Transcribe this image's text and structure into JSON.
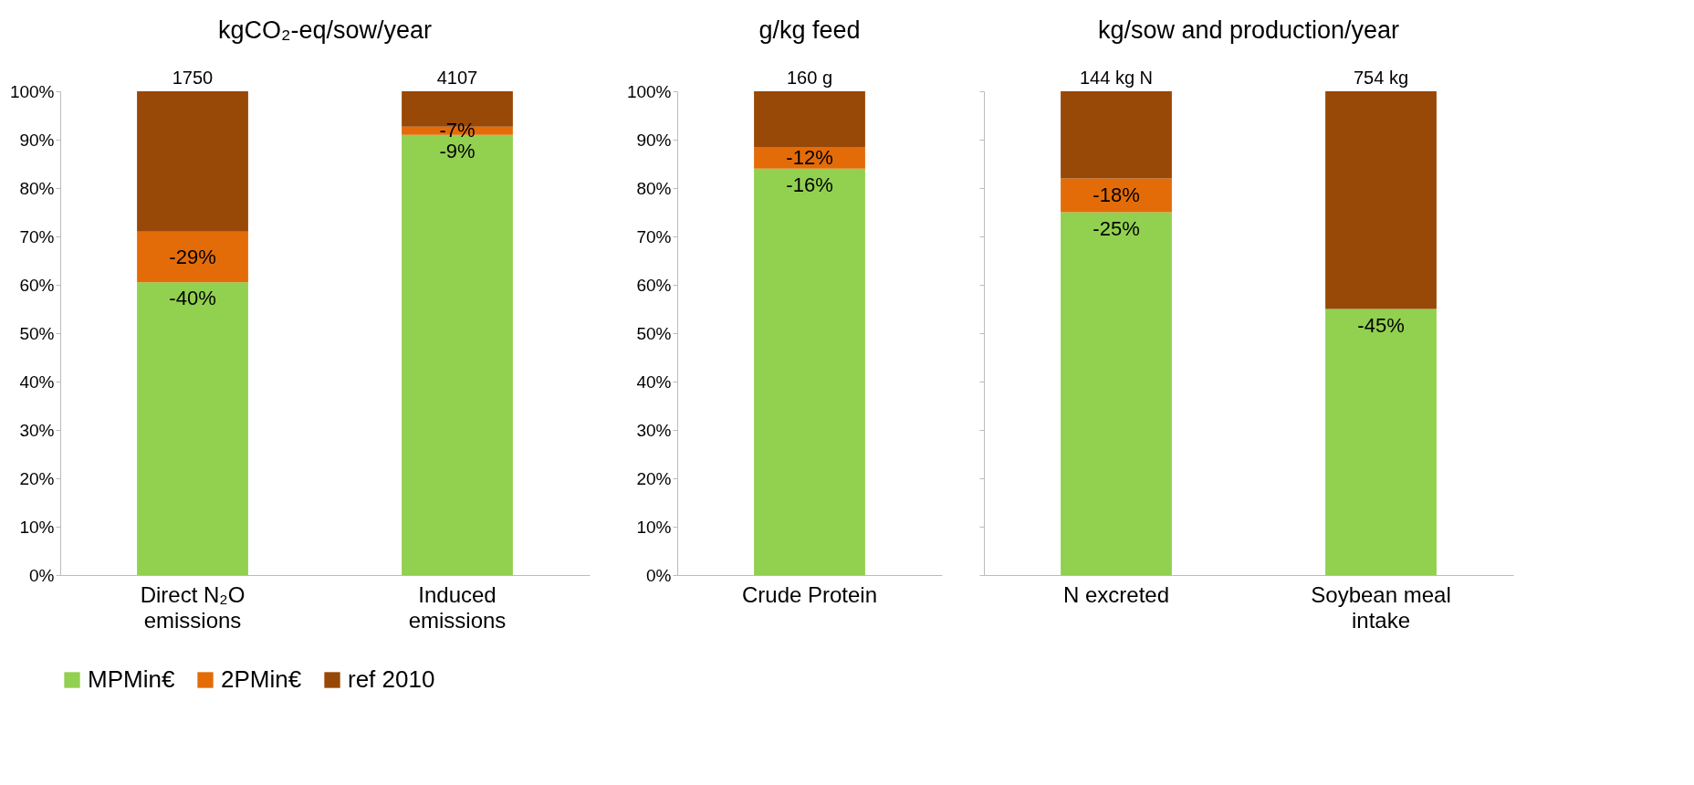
{
  "chart_data": [
    {
      "type": "bar",
      "title": "kgCO₂-eq/sow/year",
      "categories": [
        "Direct N₂O emissions",
        "Induced emissions"
      ],
      "stacked": true,
      "legend": "bottom",
      "ylim": [
        0,
        100
      ],
      "yticks": [
        {
          "value": 0,
          "label": "0%"
        },
        {
          "value": 10,
          "label": "10%"
        },
        {
          "value": 20,
          "label": "20%"
        },
        {
          "value": 30,
          "label": "30%"
        },
        {
          "value": 40,
          "label": "40%"
        },
        {
          "value": 50,
          "label": "50%"
        },
        {
          "value": 60,
          "label": "60%"
        },
        {
          "value": 70,
          "label": "70%"
        },
        {
          "value": 80,
          "label": "80%"
        },
        {
          "value": 90,
          "label": "90%"
        },
        {
          "value": 100,
          "label": "100%"
        }
      ],
      "series": [
        {
          "name": "MPMin€",
          "color": "#92d050",
          "values": [
            60.5,
            91
          ]
        },
        {
          "name": "2PMin€",
          "color": "#e36c09",
          "values": [
            10.5,
            1.7
          ]
        },
        {
          "name": "ref 2010",
          "color": "#984807",
          "values": [
            29,
            7.3
          ]
        }
      ],
      "annotations": [
        {
          "text": "1750",
          "x": "Direct N₂O emissions",
          "y": 100
        },
        {
          "text": "4107",
          "x": "Induced emissions",
          "y": 100
        },
        {
          "text": "-40%",
          "x": "Direct N₂O emissions",
          "y": 60.5
        },
        {
          "text": "-29%",
          "x": "Direct N₂O emissions",
          "y": 71
        },
        {
          "text": "-9%",
          "x": "Induced emissions",
          "y": 91
        },
        {
          "text": "-7%",
          "x": "Induced emissions",
          "y": 92.7
        }
      ]
    },
    {
      "type": "bar",
      "title": "g/kg feed",
      "categories": [
        "Crude Protein"
      ],
      "stacked": true,
      "legend": "bottom",
      "ylim": [
        0,
        100
      ],
      "yticks": [
        {
          "value": 0,
          "label": "0%"
        },
        {
          "value": 10,
          "label": "10%"
        },
        {
          "value": 20,
          "label": "20%"
        },
        {
          "value": 30,
          "label": "30%"
        },
        {
          "value": 40,
          "label": "40%"
        },
        {
          "value": 50,
          "label": "50%"
        },
        {
          "value": 60,
          "label": "60%"
        },
        {
          "value": 70,
          "label": "70%"
        },
        {
          "value": 80,
          "label": "80%"
        },
        {
          "value": 90,
          "label": "90%"
        },
        {
          "value": 100,
          "label": "100%"
        }
      ],
      "series": [
        {
          "name": "MPMin€",
          "color": "#92d050",
          "values": [
            84
          ]
        },
        {
          "name": "2PMin€",
          "color": "#e36c09",
          "values": [
            4.5
          ]
        },
        {
          "name": "ref 2010",
          "color": "#984807",
          "values": [
            11.5
          ]
        }
      ],
      "annotations": [
        {
          "text": "160 g",
          "x": "Crude Protein",
          "y": 100
        },
        {
          "text": "-16%",
          "x": "Crude Protein",
          "y": 84
        },
        {
          "text": "-12%",
          "x": "Crude Protein",
          "y": 88.5
        }
      ]
    },
    {
      "type": "bar",
      "title": "kg/sow and production/year",
      "categories": [
        "N excreted",
        "Soybean meal intake"
      ],
      "stacked": true,
      "legend": "bottom",
      "tick_labels": "x",
      "ylim": [
        0,
        100
      ],
      "yticks": [
        {
          "value": 0,
          "label": null
        },
        {
          "value": 10,
          "label": null
        },
        {
          "value": 20,
          "label": null
        },
        {
          "value": 30,
          "label": null
        },
        {
          "value": 40,
          "label": null
        },
        {
          "value": 50,
          "label": null
        },
        {
          "value": 60,
          "label": null
        },
        {
          "value": 70,
          "label": null
        },
        {
          "value": 80,
          "label": null
        },
        {
          "value": 90,
          "label": null
        },
        {
          "value": 100,
          "label": null
        }
      ],
      "series": [
        {
          "name": "MPMin€",
          "color": "#92d050",
          "values": [
            75,
            55
          ]
        },
        {
          "name": "2PMin€",
          "color": "#e36c09",
          "values": [
            7,
            0
          ]
        },
        {
          "name": "ref 2010",
          "color": "#984807",
          "values": [
            18,
            45
          ]
        }
      ],
      "annotations": [
        {
          "text": "144 kg N",
          "x": "N excreted",
          "y": 100
        },
        {
          "text": "754 kg",
          "x": "Soybean meal intake",
          "y": 100
        },
        {
          "text": "-25%",
          "x": "N excreted",
          "y": 75
        },
        {
          "text": "-18%",
          "x": "N excreted",
          "y": 82
        },
        {
          "text": "-45%",
          "x": "Soybean meal intake",
          "y": 55
        }
      ]
    }
  ]
}
